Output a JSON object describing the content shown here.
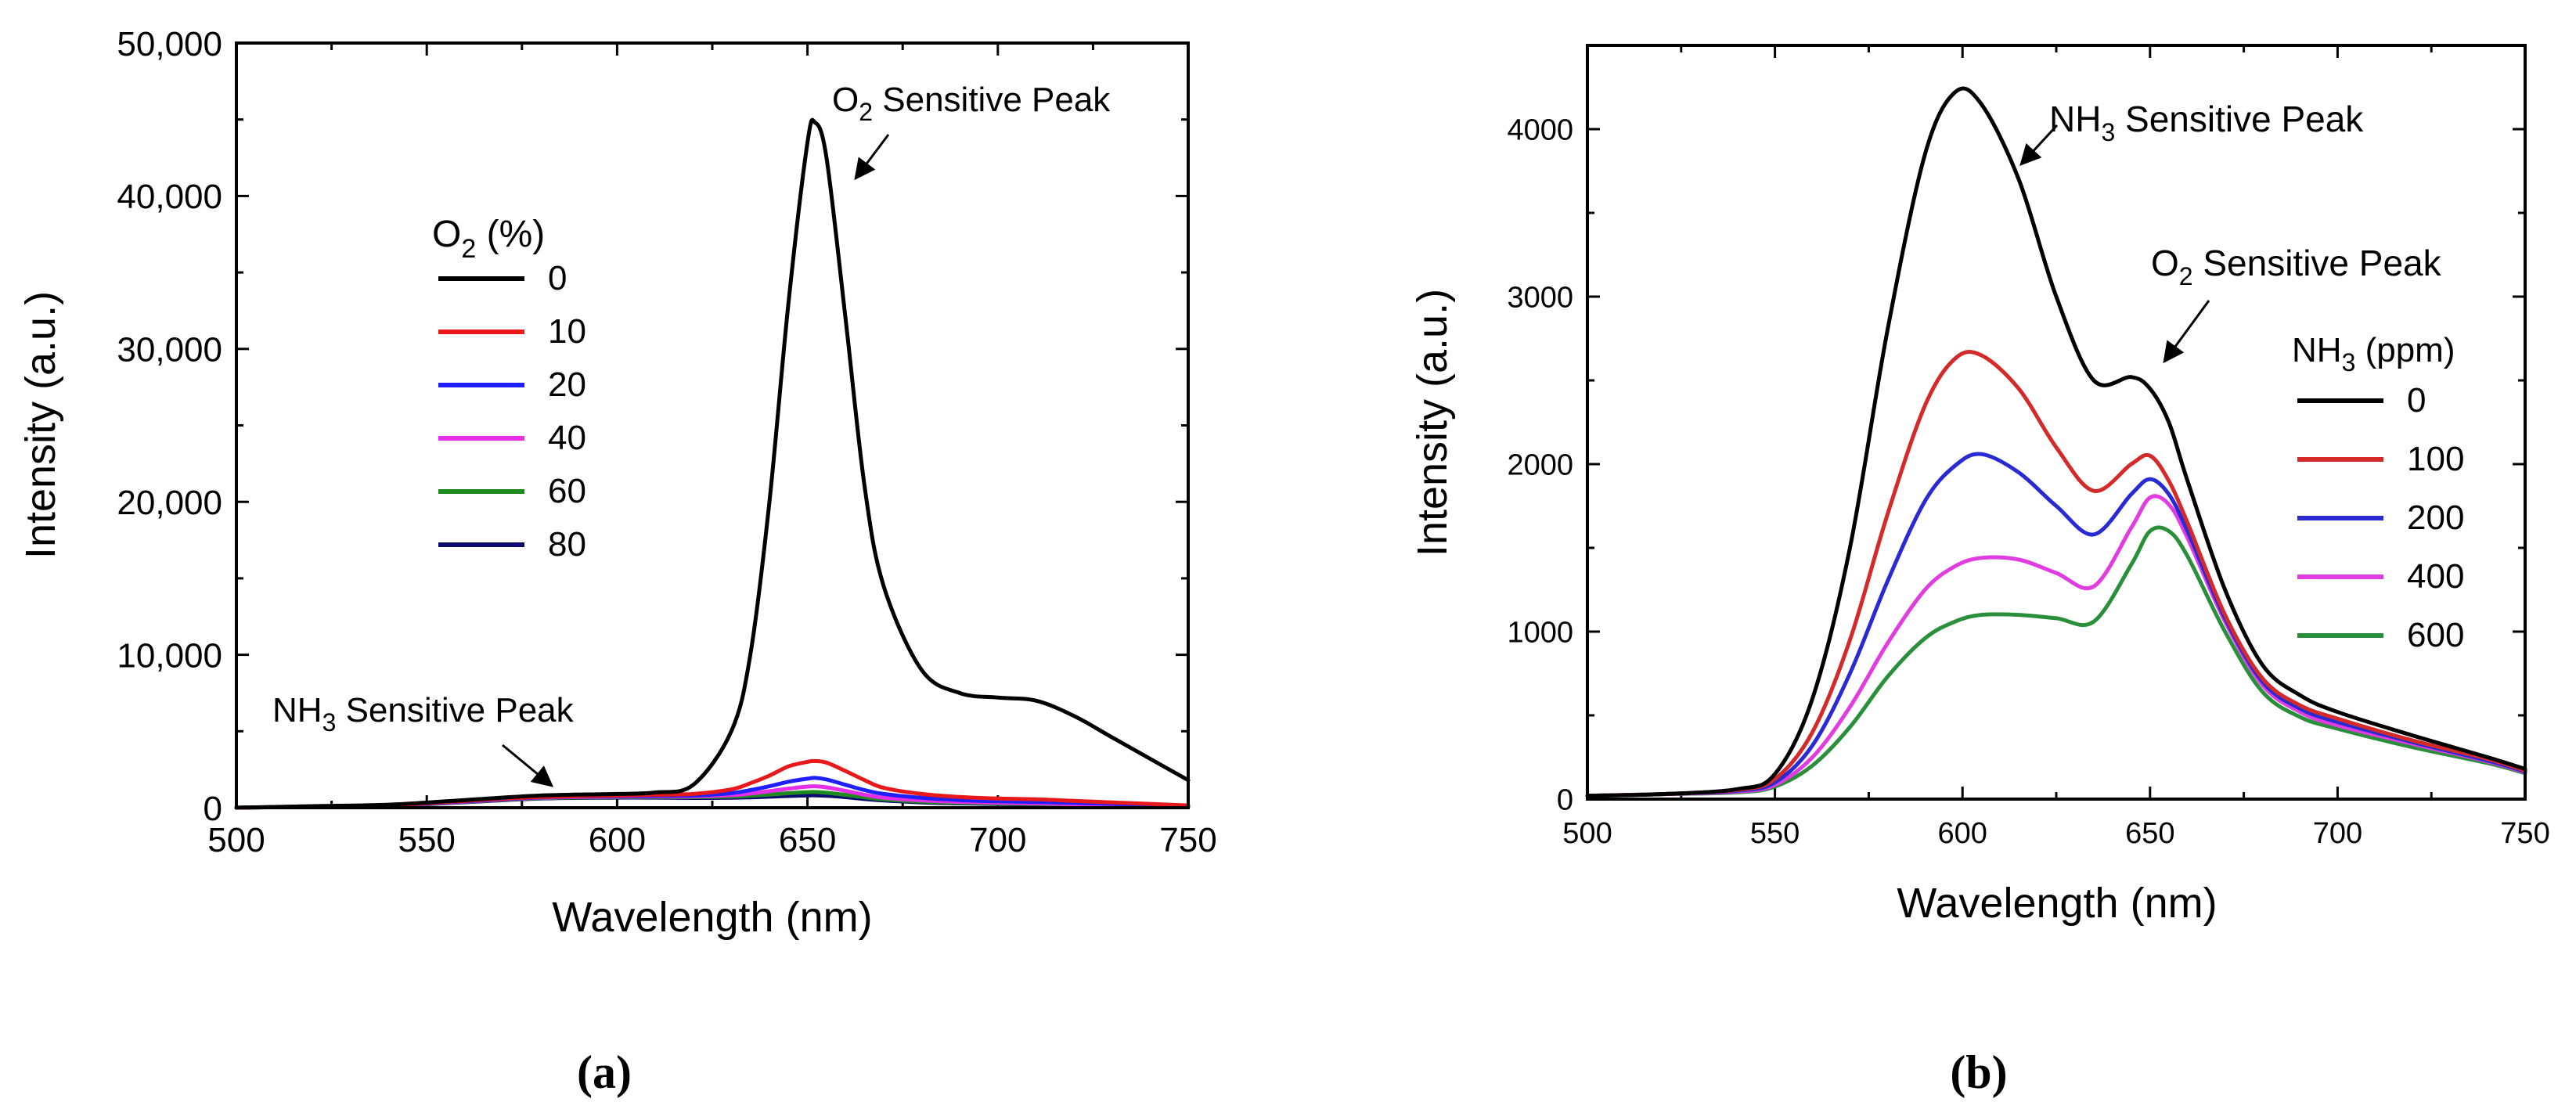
{
  "chart_data": [
    {
      "type": "line",
      "panel": "a",
      "caption": "(a)",
      "xlabel": "Wavelength (nm)",
      "ylabel": "Intensity (a.u.)",
      "xlim": [
        500,
        750
      ],
      "ylim": [
        0,
        50000
      ],
      "x_ticks": [
        500,
        550,
        600,
        650,
        700,
        750
      ],
      "y_ticks": [
        0,
        10000,
        20000,
        30000,
        40000,
        50000
      ],
      "y_tick_labels": [
        "0",
        "10,000",
        "20,000",
        "30,000",
        "40,000",
        "50,000"
      ],
      "legend_title": "O2 (%)",
      "legend_title_main": "O",
      "legend_title_sub": "2",
      "legend_title_rest": " (%)",
      "annotations": [
        {
          "id": "o2",
          "main": "O",
          "sub": "2",
          "rest": " Sensitive Peak",
          "text": "O2 Sensitive Peak",
          "points_to": [
            652,
            41000
          ]
        },
        {
          "id": "nh3",
          "main": "NH",
          "sub": "3",
          "rest": " Sensitive Peak",
          "text": "NH3 Sensitive Peak",
          "points_to": [
            593,
            1100
          ]
        }
      ],
      "x": [
        500,
        520,
        540,
        560,
        580,
        600,
        610,
        620,
        630,
        635,
        640,
        645,
        650,
        652,
        655,
        660,
        665,
        670,
        680,
        690,
        700,
        710,
        720,
        730,
        740,
        750
      ],
      "series": [
        {
          "name": "0",
          "color": "#000000",
          "values": [
            0,
            100,
            200,
            500,
            800,
            900,
            1000,
            1500,
            5000,
            10000,
            20000,
            33000,
            43500,
            44800,
            42500,
            32000,
            21000,
            14500,
            9000,
            7500,
            7200,
            7000,
            6000,
            4600,
            3200,
            1800
          ]
        },
        {
          "name": "10",
          "color": "#e8181b",
          "values": [
            0,
            80,
            160,
            450,
            700,
            800,
            850,
            900,
            1200,
            1600,
            2100,
            2700,
            3000,
            3050,
            2950,
            2400,
            1800,
            1300,
            900,
            700,
            600,
            550,
            450,
            350,
            250,
            150
          ]
        },
        {
          "name": "20",
          "color": "#1f1fff",
          "values": [
            0,
            80,
            150,
            420,
            680,
            760,
            790,
            800,
            950,
            1150,
            1400,
            1700,
            1900,
            1950,
            1850,
            1500,
            1150,
            900,
            650,
            500,
            420,
            380,
            320,
            250,
            180,
            100
          ]
        },
        {
          "name": "40",
          "color": "#e62ee6",
          "values": [
            0,
            70,
            140,
            400,
            650,
            720,
            740,
            740,
            820,
            930,
            1080,
            1250,
            1380,
            1400,
            1330,
            1100,
            850,
            650,
            480,
            380,
            320,
            280,
            230,
            180,
            130,
            80
          ]
        },
        {
          "name": "60",
          "color": "#1f8a1f",
          "values": [
            0,
            70,
            130,
            380,
            620,
            690,
            700,
            690,
            720,
            780,
            860,
            950,
            1020,
            1030,
            980,
            840,
            680,
            540,
            400,
            320,
            270,
            240,
            200,
            160,
            110,
            70
          ]
        },
        {
          "name": "80",
          "color": "#0b0b6e",
          "values": [
            0,
            60,
            120,
            360,
            600,
            660,
            660,
            640,
            650,
            680,
            720,
            770,
            800,
            810,
            780,
            690,
            570,
            470,
            350,
            280,
            240,
            210,
            180,
            140,
            100,
            60
          ]
        }
      ]
    },
    {
      "type": "line",
      "panel": "b",
      "caption": "(b)",
      "xlabel": "Wavelength (nm)",
      "ylabel": "Intensity (a.u.)",
      "xlim": [
        500,
        750
      ],
      "ylim": [
        0,
        4500
      ],
      "x_ticks": [
        500,
        550,
        600,
        650,
        700,
        750
      ],
      "y_ticks": [
        0,
        1000,
        2000,
        3000,
        4000
      ],
      "y_tick_labels": [
        "0",
        "1000",
        "2000",
        "3000",
        "4000"
      ],
      "legend_title": "NH3 (ppm)",
      "legend_title_main": "NH",
      "legend_title_sub": "3",
      "legend_title_rest": " (ppm)",
      "annotations": [
        {
          "id": "nh3",
          "main": "NH",
          "sub": "3",
          "rest": " Sensitive Peak",
          "text": "NH3 Sensitive Peak",
          "points_to": [
            608,
            3950
          ]
        },
        {
          "id": "o2",
          "main": "O",
          "sub": "2",
          "rest": " Sensitive Peak",
          "text": "O2 Sensitive Peak",
          "points_to": [
            651,
            2600
          ]
        }
      ],
      "x": [
        500,
        520,
        540,
        550,
        560,
        570,
        580,
        590,
        598,
        605,
        615,
        625,
        635,
        645,
        650,
        655,
        660,
        670,
        680,
        690,
        700,
        720,
        740,
        750
      ],
      "series": [
        {
          "name": "0",
          "color": "#000000",
          "values": [
            20,
            30,
            60,
            150,
            600,
            1500,
            2800,
            3850,
            4220,
            4150,
            3700,
            3000,
            2500,
            2520,
            2450,
            2250,
            1900,
            1250,
            800,
            620,
            520,
            380,
            250,
            180
          ]
        },
        {
          "name": "100",
          "color": "#d42a2a",
          "values": [
            20,
            30,
            55,
            120,
            400,
            950,
            1700,
            2350,
            2630,
            2650,
            2450,
            2100,
            1840,
            2000,
            2050,
            1900,
            1650,
            1100,
            720,
            560,
            480,
            350,
            240,
            170
          ]
        },
        {
          "name": "200",
          "color": "#2a2ad4",
          "values": [
            20,
            30,
            50,
            100,
            320,
            750,
            1300,
            1780,
            1990,
            2060,
            1950,
            1750,
            1580,
            1820,
            1910,
            1820,
            1600,
            1080,
            700,
            540,
            460,
            340,
            230,
            165
          ]
        },
        {
          "name": "400",
          "color": "#e03ce0",
          "values": [
            20,
            30,
            45,
            85,
            250,
            550,
            930,
            1250,
            1390,
            1440,
            1430,
            1350,
            1270,
            1620,
            1800,
            1760,
            1560,
            1060,
            680,
            520,
            440,
            330,
            225,
            160
          ]
        },
        {
          "name": "600",
          "color": "#2a8f3a",
          "values": [
            20,
            30,
            40,
            75,
            200,
            430,
            730,
            960,
            1060,
            1100,
            1100,
            1080,
            1060,
            1400,
            1600,
            1600,
            1450,
            1000,
            640,
            490,
            420,
            310,
            215,
            155
          ]
        }
      ]
    }
  ]
}
